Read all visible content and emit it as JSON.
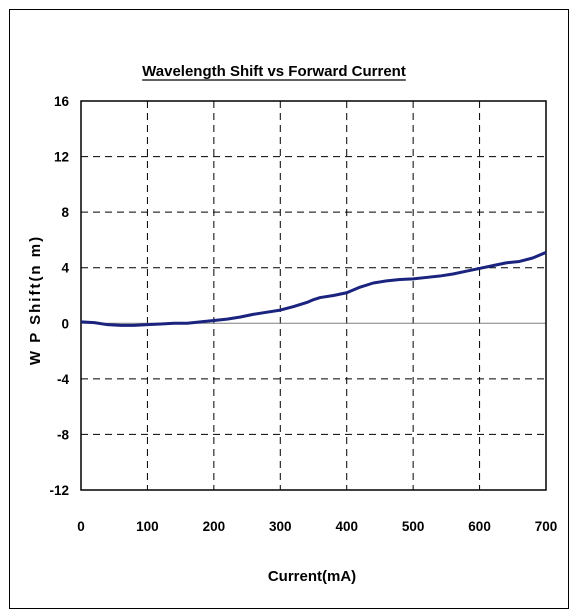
{
  "chart_data": {
    "type": "line",
    "title": "Wavelength Shift vs Forward Current",
    "xlabel": "Current(mA)",
    "ylabel": "W P Shift(n m)",
    "xlim": [
      0,
      700
    ],
    "ylim": [
      -12,
      16
    ],
    "xticks": [
      0,
      100,
      200,
      300,
      400,
      500,
      600,
      700
    ],
    "yticks": [
      -12,
      -8,
      -4,
      0,
      4,
      8,
      12,
      16
    ],
    "grid": "dashed",
    "legend": "none",
    "series": [
      {
        "color": "#1a237e",
        "x": [
          0,
          20,
          40,
          60,
          80,
          100,
          120,
          140,
          160,
          180,
          200,
          220,
          240,
          260,
          280,
          300,
          320,
          340,
          350,
          360,
          380,
          400,
          420,
          440,
          460,
          480,
          500,
          520,
          540,
          560,
          580,
          600,
          620,
          640,
          660,
          680,
          700
        ],
        "y": [
          0.1,
          0.05,
          -0.1,
          -0.15,
          -0.15,
          -0.1,
          -0.05,
          0,
          0,
          0.1,
          0.2,
          0.3,
          0.45,
          0.65,
          0.8,
          0.95,
          1.2,
          1.5,
          1.7,
          1.85,
          2.0,
          2.2,
          2.6,
          2.9,
          3.05,
          3.15,
          3.2,
          3.3,
          3.4,
          3.55,
          3.75,
          3.95,
          4.15,
          4.35,
          4.45,
          4.7,
          5.1
        ]
      }
    ]
  }
}
